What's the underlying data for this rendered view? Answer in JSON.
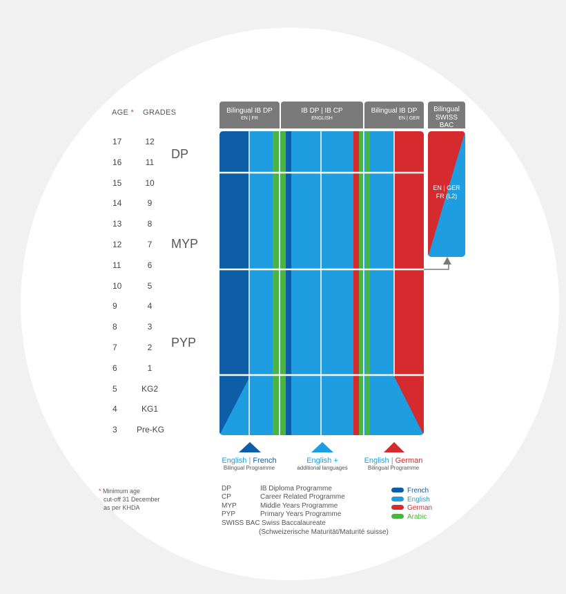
{
  "headers": {
    "age": "AGE",
    "age_star": "*",
    "grades": "GRADES"
  },
  "rows": [
    {
      "age": "17",
      "grade": "12"
    },
    {
      "age": "16",
      "grade": "11"
    },
    {
      "age": "15",
      "grade": "10"
    },
    {
      "age": "14",
      "grade": "9"
    },
    {
      "age": "13",
      "grade": "8"
    },
    {
      "age": "12",
      "grade": "7"
    },
    {
      "age": "11",
      "grade": "6"
    },
    {
      "age": "10",
      "grade": "5"
    },
    {
      "age": "9",
      "grade": "4"
    },
    {
      "age": "8",
      "grade": "3"
    },
    {
      "age": "7",
      "grade": "2"
    },
    {
      "age": "6",
      "grade": "1"
    },
    {
      "age": "5",
      "grade": "KG2"
    },
    {
      "age": "4",
      "grade": "KG1"
    },
    {
      "age": "3",
      "grade": "Pre-KG"
    }
  ],
  "stages": {
    "dp": "DP",
    "myp": "MYP",
    "pyp": "PYP"
  },
  "tabs": [
    {
      "title": "Bilingual IB DP",
      "sub_a": "EN",
      "sub_b": "FR"
    },
    {
      "title_a": "IB DP",
      "title_b": "IB CP",
      "sub": "ENGLISH"
    },
    {
      "title": "Bilingual IB DP",
      "sub_a": "EN",
      "sub_b": "GER"
    },
    {
      "title_line1": "Bilingual",
      "title_line2": "SWISS BAC"
    }
  ],
  "swiss_panel": {
    "line1_a": "EN",
    "line1_b": "GER",
    "line2": "FR (L2)"
  },
  "programmes": [
    {
      "lang_a": "English",
      "lang_b": "French",
      "sub": "Bilingual Programme"
    },
    {
      "lang": "English +",
      "sub": "additional languages"
    },
    {
      "lang_a": "English",
      "lang_b": "German",
      "sub": "Bilingual Programme"
    }
  ],
  "footnote": {
    "star": "*",
    "line1": "Minimum age",
    "line2": "cut-off 31 December",
    "line3": "as per KHDA"
  },
  "glossary": [
    {
      "abbr": "DP",
      "full": "IB Diploma Programme"
    },
    {
      "abbr": "CP",
      "full": "Career Related Programme"
    },
    {
      "abbr": "MYP",
      "full": "Middle Years Programme"
    },
    {
      "abbr": "PYP",
      "full": "Primary Years Programme"
    },
    {
      "abbr": "SWISS BAC",
      "full": "Swiss Baccalaureate"
    }
  ],
  "glossary_extra": "(Schweizerische Maturität/Maturité suisse)",
  "legend": [
    {
      "label": "French",
      "color": "#0d5ea6"
    },
    {
      "label": "English",
      "color": "#1e9ee0"
    },
    {
      "label": "German",
      "color": "#d52b2f"
    },
    {
      "label": "Arabic",
      "color": "#4ab43f"
    }
  ],
  "colors": {
    "french": "#0d5ea6",
    "english": "#1e9ee0",
    "german": "#d52b2f",
    "arabic": "#4ab43f",
    "header": "#7a7a7a"
  }
}
